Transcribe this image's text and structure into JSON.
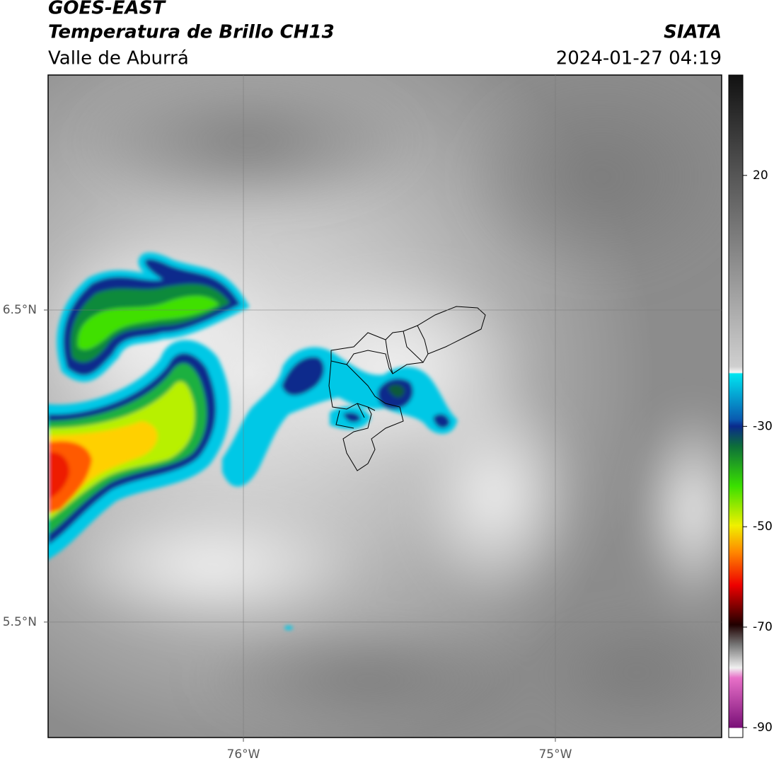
{
  "header": {
    "title": "GOES-EAST",
    "subtitle": "Temperatura de Brillo CH13",
    "region": "Valle de Aburrá",
    "source": "SIATA",
    "datetime": "2024-01-27 04:19"
  },
  "map": {
    "xlim": [
      -76.626,
      -74.467
    ],
    "ylim": [
      5.13,
      7.253
    ],
    "xticks": [
      {
        "value": -76,
        "label": "76°W"
      },
      {
        "value": -75,
        "label": "75°W"
      }
    ],
    "yticks": [
      {
        "value": 6.5,
        "label": "6.5°N"
      },
      {
        "value": 5.5,
        "label": "5.5°N"
      }
    ]
  },
  "colorbar": {
    "lim": [
      -92,
      40
    ],
    "ticks": [
      20,
      -30,
      -50,
      -70,
      -90
    ]
  }
}
